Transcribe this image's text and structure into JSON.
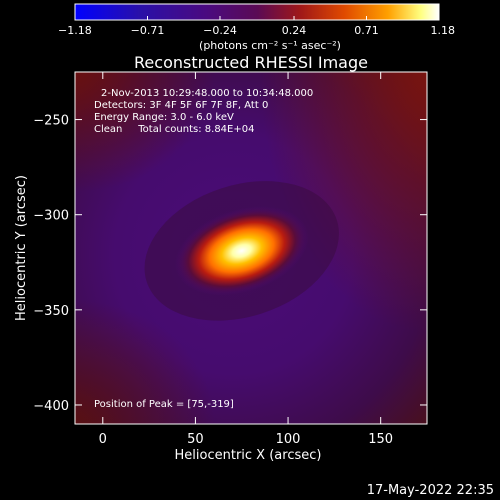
{
  "chart_data": {
    "type": "heatmap",
    "title": "Reconstructed RHESSI Image",
    "xlabel": "Heliocentric X (arcsec)",
    "ylabel": "Heliocentric Y (arcsec)",
    "xlim": [
      -15,
      175
    ],
    "ylim": [
      -410,
      -225
    ],
    "x_ticks": [
      0,
      50,
      100,
      150
    ],
    "y_ticks": [
      -250,
      -300,
      -350,
      -400
    ],
    "x_tick_labels": [
      "0",
      "50",
      "100",
      "150"
    ],
    "y_tick_labels": [
      "−250",
      "−300",
      "−350",
      "−400"
    ],
    "colorbar": {
      "range": [
        -1.18,
        1.18
      ],
      "ticks": [
        -1.18,
        -0.71,
        -0.24,
        0.24,
        0.71,
        1.18
      ],
      "tick_labels": [
        "−1.18",
        "−0.71",
        "−0.24",
        "0.24",
        "0.71",
        "1.18"
      ],
      "unit_label": "(photons cm⁻² s⁻¹ asec⁻²)",
      "colors": [
        "#0000ff",
        "#3a007a",
        "#4b0078",
        "#8a1020",
        "#d63a00",
        "#ff9a00",
        "#ffffa0",
        "#ffffff"
      ]
    },
    "source": {
      "x": 75,
      "y": -319,
      "sigma_x": 20,
      "sigma_y": 10,
      "rotation_deg": 18,
      "peak_value": 1.18
    },
    "background_value": -0.24,
    "annotations": [
      "2-Nov-2013 10:29:48.000 to 10:34:48.000",
      "Detectors: 3F 4F 5F 6F 7F 8F, Att 0",
      "Energy Range: 3.0 - 6.0 keV",
      "Clean     Total counts: 8.84E+04"
    ],
    "peak_label": "Position of Peak = [75,-319]"
  },
  "footer": {
    "timestamp": "17-May-2022 22:35"
  }
}
